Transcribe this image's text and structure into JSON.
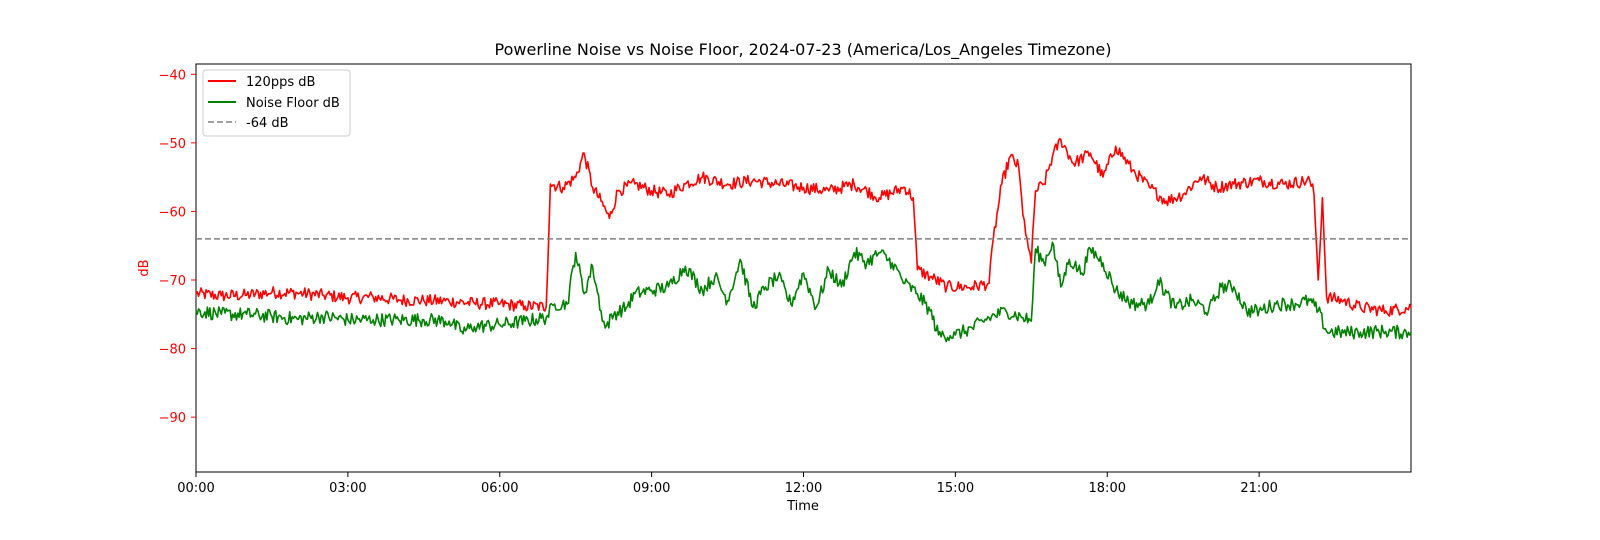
{
  "chart_data": {
    "type": "line",
    "title": "Powerline Noise vs Noise Floor, 2024-07-23 (America/Los_Angeles Timezone)",
    "xlabel": "Time",
    "ylabel": "dB",
    "x_ticks": [
      "00:00",
      "03:00",
      "06:00",
      "09:00",
      "12:00",
      "15:00",
      "18:00",
      "21:00"
    ],
    "y_ticks": [
      -40,
      -50,
      -60,
      -70,
      -80,
      -90
    ],
    "xlim": [
      "00:00",
      "24:00"
    ],
    "ylim": [
      -98,
      -38.5
    ],
    "legend_position": "upper-left",
    "grid": false,
    "colors": {
      "signal": "#ff0000",
      "floor": "#008000",
      "reference": "#808080",
      "ylabel": "#ff0000"
    },
    "series": [
      {
        "name": "120pps dB",
        "color": "#ff0000",
        "points": [
          [
            "00:00",
            -72.0
          ],
          [
            "00:30",
            -72.3
          ],
          [
            "01:00",
            -72.2
          ],
          [
            "01:30",
            -71.8
          ],
          [
            "02:00",
            -71.9
          ],
          [
            "02:30",
            -72.2
          ],
          [
            "03:00",
            -72.6
          ],
          [
            "03:30",
            -72.5
          ],
          [
            "04:00",
            -72.9
          ],
          [
            "04:30",
            -73.0
          ],
          [
            "05:00",
            -73.1
          ],
          [
            "05:30",
            -73.4
          ],
          [
            "06:00",
            -73.5
          ],
          [
            "06:30",
            -73.8
          ],
          [
            "06:55",
            -73.9
          ],
          [
            "07:00",
            -56.0
          ],
          [
            "07:15",
            -56.5
          ],
          [
            "07:30",
            -55.0
          ],
          [
            "07:40",
            -51.5
          ],
          [
            "07:50",
            -56.5
          ],
          [
            "08:00",
            -58.5
          ],
          [
            "08:10",
            -61.0
          ],
          [
            "08:20",
            -57.0
          ],
          [
            "08:40",
            -56.0
          ],
          [
            "09:00",
            -57.0
          ],
          [
            "09:20",
            -57.5
          ],
          [
            "09:40",
            -56.0
          ],
          [
            "10:00",
            -55.0
          ],
          [
            "10:30",
            -56.0
          ],
          [
            "11:00",
            -55.5
          ],
          [
            "11:30",
            -56.0
          ],
          [
            "12:00",
            -56.5
          ],
          [
            "12:30",
            -57.0
          ],
          [
            "13:00",
            -56.0
          ],
          [
            "13:30",
            -58.0
          ],
          [
            "14:00",
            -56.5
          ],
          [
            "14:10",
            -58.0
          ],
          [
            "14:15",
            -68.5
          ],
          [
            "14:30",
            -69.5
          ],
          [
            "14:50",
            -71.0
          ],
          [
            "15:20",
            -71.0
          ],
          [
            "15:40",
            -70.5
          ],
          [
            "15:45",
            -64.0
          ],
          [
            "15:55",
            -56.0
          ],
          [
            "16:05",
            -52.0
          ],
          [
            "16:15",
            -53.5
          ],
          [
            "16:20",
            -60.5
          ],
          [
            "16:25",
            -64.0
          ],
          [
            "16:30",
            -67.5
          ],
          [
            "16:35",
            -57.0
          ],
          [
            "16:45",
            -56.0
          ],
          [
            "16:55",
            -52.0
          ],
          [
            "17:05",
            -49.5
          ],
          [
            "17:20",
            -53.0
          ],
          [
            "17:40",
            -51.5
          ],
          [
            "17:55",
            -55.0
          ],
          [
            "18:10",
            -50.5
          ],
          [
            "18:30",
            -54.0
          ],
          [
            "18:50",
            -56.5
          ],
          [
            "19:10",
            -58.5
          ],
          [
            "19:30",
            -57.5
          ],
          [
            "19:50",
            -55.0
          ],
          [
            "20:10",
            -56.5
          ],
          [
            "20:30",
            -56.0
          ],
          [
            "21:00",
            -55.5
          ],
          [
            "21:30",
            -56.0
          ],
          [
            "22:00",
            -55.5
          ],
          [
            "22:05",
            -57.5
          ],
          [
            "22:10",
            -70.0
          ],
          [
            "22:15",
            -58.0
          ],
          [
            "22:20",
            -72.5
          ],
          [
            "22:40",
            -73.0
          ],
          [
            "23:00",
            -74.0
          ],
          [
            "23:30",
            -74.5
          ],
          [
            "24:00",
            -74.0
          ]
        ]
      },
      {
        "name": "Noise Floor dB",
        "color": "#008000",
        "points": [
          [
            "00:00",
            -74.5
          ],
          [
            "00:30",
            -75.0
          ],
          [
            "01:00",
            -75.0
          ],
          [
            "01:30",
            -75.3
          ],
          [
            "02:00",
            -75.7
          ],
          [
            "02:30",
            -75.3
          ],
          [
            "03:00",
            -75.8
          ],
          [
            "03:30",
            -75.8
          ],
          [
            "04:00",
            -75.8
          ],
          [
            "04:30",
            -75.8
          ],
          [
            "05:00",
            -76.0
          ],
          [
            "05:15",
            -77.5
          ],
          [
            "05:30",
            -76.8
          ],
          [
            "06:00",
            -76.5
          ],
          [
            "06:30",
            -76.0
          ],
          [
            "06:55",
            -75.5
          ],
          [
            "07:05",
            -73.5
          ],
          [
            "07:20",
            -73.5
          ],
          [
            "07:30",
            -66.0
          ],
          [
            "07:40",
            -72.0
          ],
          [
            "07:50",
            -68.0
          ],
          [
            "08:00",
            -74.5
          ],
          [
            "08:05",
            -77.0
          ],
          [
            "08:15",
            -75.0
          ],
          [
            "08:30",
            -74.0
          ],
          [
            "08:40",
            -72.0
          ],
          [
            "09:00",
            -71.5
          ],
          [
            "09:20",
            -71.0
          ],
          [
            "09:40",
            -68.0
          ],
          [
            "10:00",
            -71.5
          ],
          [
            "10:15",
            -69.5
          ],
          [
            "10:30",
            -73.0
          ],
          [
            "10:45",
            -67.0
          ],
          [
            "11:00",
            -74.0
          ],
          [
            "11:15",
            -71.0
          ],
          [
            "11:30",
            -69.5
          ],
          [
            "11:45",
            -73.5
          ],
          [
            "12:00",
            -69.0
          ],
          [
            "12:15",
            -74.0
          ],
          [
            "12:30",
            -68.5
          ],
          [
            "12:45",
            -71.0
          ],
          [
            "13:00",
            -66.0
          ],
          [
            "13:15",
            -67.5
          ],
          [
            "13:30",
            -66.0
          ],
          [
            "13:45",
            -67.5
          ],
          [
            "14:00",
            -70.5
          ],
          [
            "14:15",
            -72.0
          ],
          [
            "14:30",
            -74.5
          ],
          [
            "14:40",
            -78.0
          ],
          [
            "15:00",
            -78.0
          ],
          [
            "15:20",
            -77.0
          ],
          [
            "15:40",
            -75.5
          ],
          [
            "16:00",
            -74.5
          ],
          [
            "16:20",
            -75.5
          ],
          [
            "16:30",
            -76.0
          ],
          [
            "16:35",
            -65.5
          ],
          [
            "16:45",
            -67.5
          ],
          [
            "16:55",
            -64.5
          ],
          [
            "17:05",
            -71.0
          ],
          [
            "17:15",
            -67.0
          ],
          [
            "17:30",
            -69.0
          ],
          [
            "17:40",
            -65.5
          ],
          [
            "17:55",
            -67.5
          ],
          [
            "18:10",
            -71.5
          ],
          [
            "18:30",
            -73.5
          ],
          [
            "18:50",
            -73.5
          ],
          [
            "19:00",
            -70.0
          ],
          [
            "19:20",
            -74.0
          ],
          [
            "19:40",
            -73.0
          ],
          [
            "20:00",
            -74.5
          ],
          [
            "20:15",
            -71.0
          ],
          [
            "20:30",
            -71.0
          ],
          [
            "20:45",
            -74.5
          ],
          [
            "21:00",
            -74.5
          ],
          [
            "21:20",
            -73.5
          ],
          [
            "21:40",
            -73.5
          ],
          [
            "22:00",
            -73.0
          ],
          [
            "22:10",
            -74.5
          ],
          [
            "22:20",
            -77.5
          ],
          [
            "22:40",
            -77.7
          ],
          [
            "23:00",
            -77.6
          ],
          [
            "23:30",
            -77.5
          ],
          [
            "24:00",
            -77.7
          ]
        ]
      },
      {
        "name": "-64 dB",
        "color": "#808080",
        "style": "dashed",
        "points": [
          [
            "00:00",
            -64
          ],
          [
            "24:00",
            -64
          ]
        ]
      }
    ]
  }
}
